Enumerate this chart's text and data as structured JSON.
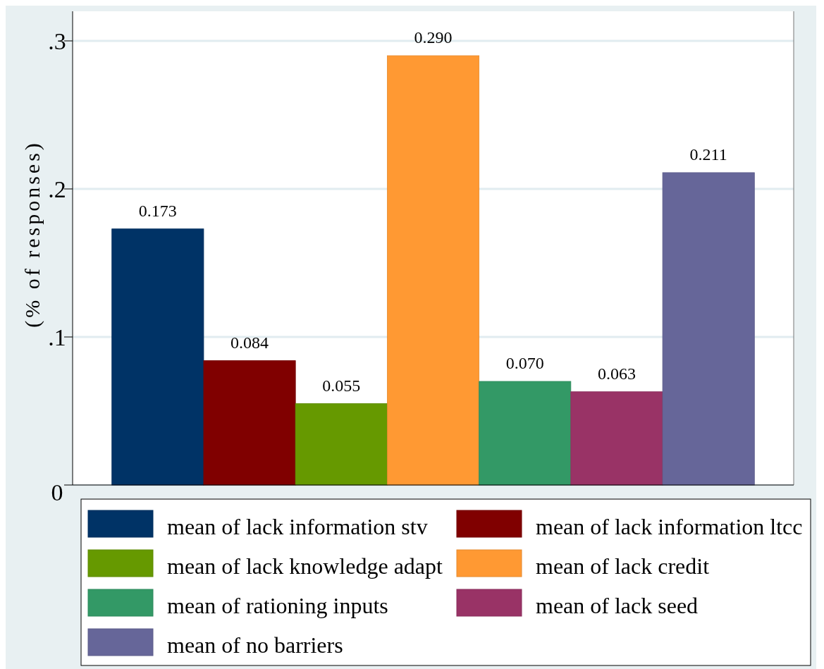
{
  "chart_data": {
    "type": "bar",
    "ylabel": "(% of responses)",
    "categories": [
      null
    ],
    "series": [
      {
        "name": "mean of lack information stv",
        "color": "#003366",
        "values": [
          0.173
        ],
        "value_labels": [
          "0.173"
        ]
      },
      {
        "name": "mean of lack information ltcc",
        "color": "#800000",
        "values": [
          0.084
        ],
        "value_labels": [
          "0.084"
        ]
      },
      {
        "name": "mean of lack knowledge adapt",
        "color": "#669900",
        "values": [
          0.055
        ],
        "value_labels": [
          "0.055"
        ]
      },
      {
        "name": "mean of lack credit",
        "color": "#ff9933",
        "values": [
          0.29
        ],
        "value_labels": [
          "0.290"
        ]
      },
      {
        "name": "mean of rationing inputs",
        "color": "#339966",
        "values": [
          0.07
        ],
        "value_labels": [
          "0.070"
        ]
      },
      {
        "name": "mean of lack seed",
        "color": "#993366",
        "values": [
          0.063
        ],
        "value_labels": [
          "0.063"
        ]
      },
      {
        "name": "mean of no barriers",
        "color": "#666699",
        "values": [
          0.211
        ],
        "value_labels": [
          "0.211"
        ]
      }
    ],
    "ylim": [
      0,
      0.32
    ],
    "yticks": [
      {
        "value": 0,
        "label": "0"
      },
      {
        "value": 0.1,
        "label": ".1"
      },
      {
        "value": 0.2,
        "label": ".2"
      },
      {
        "value": 0.3,
        "label": ".3"
      }
    ],
    "grid": "y",
    "legend": "bottom"
  }
}
